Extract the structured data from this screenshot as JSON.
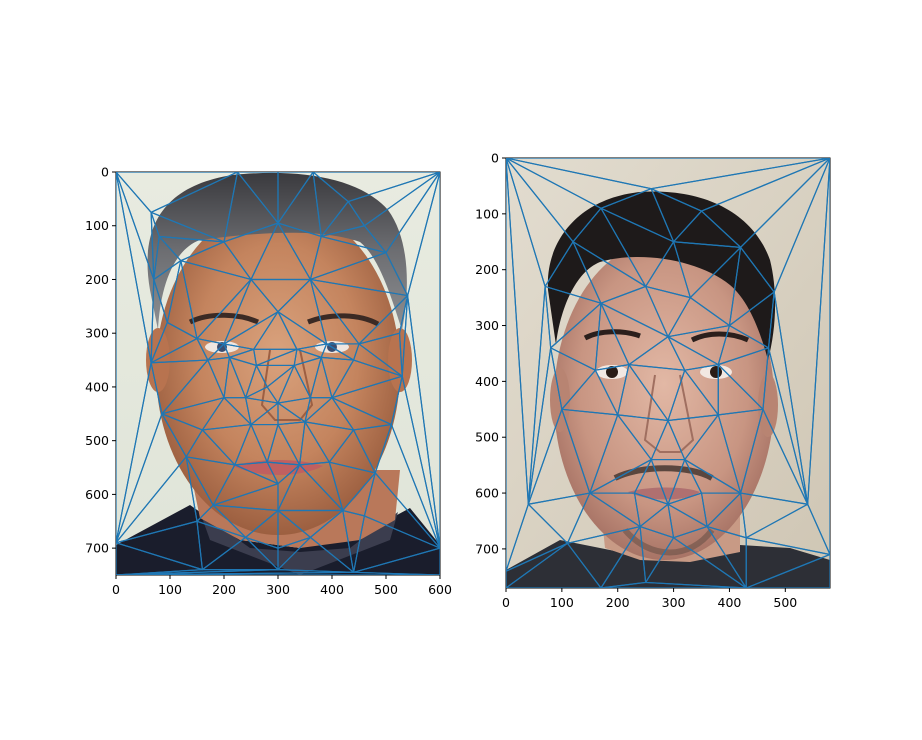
{
  "chart_data": [
    {
      "type": "image",
      "description_hidden": true,
      "xlim": [
        0,
        600
      ],
      "ylim": [
        750,
        0
      ],
      "xticks": [
        0,
        100,
        200,
        300,
        400,
        500,
        600
      ],
      "yticks": [
        0,
        100,
        200,
        300,
        400,
        500,
        600,
        700
      ],
      "xtick_labels": [
        "0",
        "100",
        "200",
        "300",
        "400",
        "500",
        "600"
      ],
      "ytick_labels": [
        "0",
        "100",
        "200",
        "300",
        "400",
        "500",
        "600",
        "700"
      ],
      "mesh_color": "#1f77b4",
      "points": [
        [
          0,
          0
        ],
        [
          600,
          0
        ],
        [
          0,
          750
        ],
        [
          600,
          750
        ],
        [
          65,
          75
        ],
        [
          225,
          0
        ],
        [
          300,
          0
        ],
        [
          365,
          0
        ],
        [
          430,
          55
        ],
        [
          80,
          120
        ],
        [
          70,
          200
        ],
        [
          95,
          280
        ],
        [
          65,
          355
        ],
        [
          85,
          450
        ],
        [
          130,
          530
        ],
        [
          180,
          620
        ],
        [
          240,
          680
        ],
        [
          300,
          700
        ],
        [
          360,
          680
        ],
        [
          420,
          630
        ],
        [
          480,
          560
        ],
        [
          510,
          470
        ],
        [
          530,
          380
        ],
        [
          525,
          300
        ],
        [
          540,
          230
        ],
        [
          500,
          150
        ],
        [
          460,
          100
        ],
        [
          300,
          95
        ],
        [
          200,
          130
        ],
        [
          120,
          165
        ],
        [
          380,
          120
        ],
        [
          150,
          310
        ],
        [
          200,
          320
        ],
        [
          255,
          330
        ],
        [
          335,
          330
        ],
        [
          390,
          320
        ],
        [
          450,
          320
        ],
        [
          170,
          350
        ],
        [
          210,
          345
        ],
        [
          260,
          360
        ],
        [
          330,
          360
        ],
        [
          380,
          345
        ],
        [
          440,
          350
        ],
        [
          280,
          400
        ],
        [
          300,
          430
        ],
        [
          250,
          470
        ],
        [
          300,
          470
        ],
        [
          350,
          465
        ],
        [
          220,
          545
        ],
        [
          280,
          540
        ],
        [
          340,
          545
        ],
        [
          395,
          540
        ],
        [
          300,
          580
        ],
        [
          200,
          420
        ],
        [
          400,
          420
        ],
        [
          160,
          480
        ],
        [
          440,
          480
        ],
        [
          300,
          260
        ],
        [
          250,
          200
        ],
        [
          360,
          200
        ],
        [
          0,
          690
        ],
        [
          160,
          740
        ],
        [
          440,
          745
        ],
        [
          600,
          700
        ],
        [
          460,
          640
        ],
        [
          150,
          650
        ],
        [
          300,
          740
        ],
        [
          240,
          420
        ],
        [
          360,
          420
        ],
        [
          300,
          630
        ]
      ]
    },
    {
      "type": "image",
      "xlim": [
        0,
        580
      ],
      "ylim": [
        770,
        0
      ],
      "xticks": [
        0,
        100,
        200,
        300,
        400,
        500
      ],
      "yticks": [
        0,
        100,
        200,
        300,
        400,
        500,
        600,
        700
      ],
      "xtick_labels": [
        "0",
        "100",
        "200",
        "300",
        "400",
        "500"
      ],
      "ytick_labels": [
        "0",
        "100",
        "200",
        "300",
        "400",
        "500",
        "600",
        "700"
      ],
      "mesh_color": "#1f77b4",
      "points": [
        [
          0,
          0
        ],
        [
          580,
          0
        ],
        [
          0,
          770
        ],
        [
          580,
          770
        ],
        [
          260,
          55
        ],
        [
          170,
          90
        ],
        [
          350,
          95
        ],
        [
          120,
          150
        ],
        [
          420,
          160
        ],
        [
          70,
          230
        ],
        [
          480,
          240
        ],
        [
          80,
          340
        ],
        [
          470,
          340
        ],
        [
          100,
          450
        ],
        [
          460,
          450
        ],
        [
          150,
          600
        ],
        [
          240,
          660
        ],
        [
          300,
          680
        ],
        [
          360,
          660
        ],
        [
          420,
          600
        ],
        [
          170,
          260
        ],
        [
          250,
          230
        ],
        [
          330,
          250
        ],
        [
          400,
          300
        ],
        [
          160,
          380
        ],
        [
          220,
          370
        ],
        [
          320,
          380
        ],
        [
          380,
          370
        ],
        [
          290,
          470
        ],
        [
          260,
          540
        ],
        [
          320,
          540
        ],
        [
          230,
          600
        ],
        [
          290,
          620
        ],
        [
          350,
          600
        ],
        [
          290,
          320
        ],
        [
          200,
          460
        ],
        [
          380,
          460
        ],
        [
          0,
          740
        ],
        [
          110,
          690
        ],
        [
          170,
          770
        ],
        [
          430,
          770
        ],
        [
          580,
          710
        ],
        [
          430,
          680
        ],
        [
          250,
          760
        ],
        [
          540,
          620
        ],
        [
          40,
          620
        ],
        [
          300,
          150
        ]
      ]
    }
  ]
}
